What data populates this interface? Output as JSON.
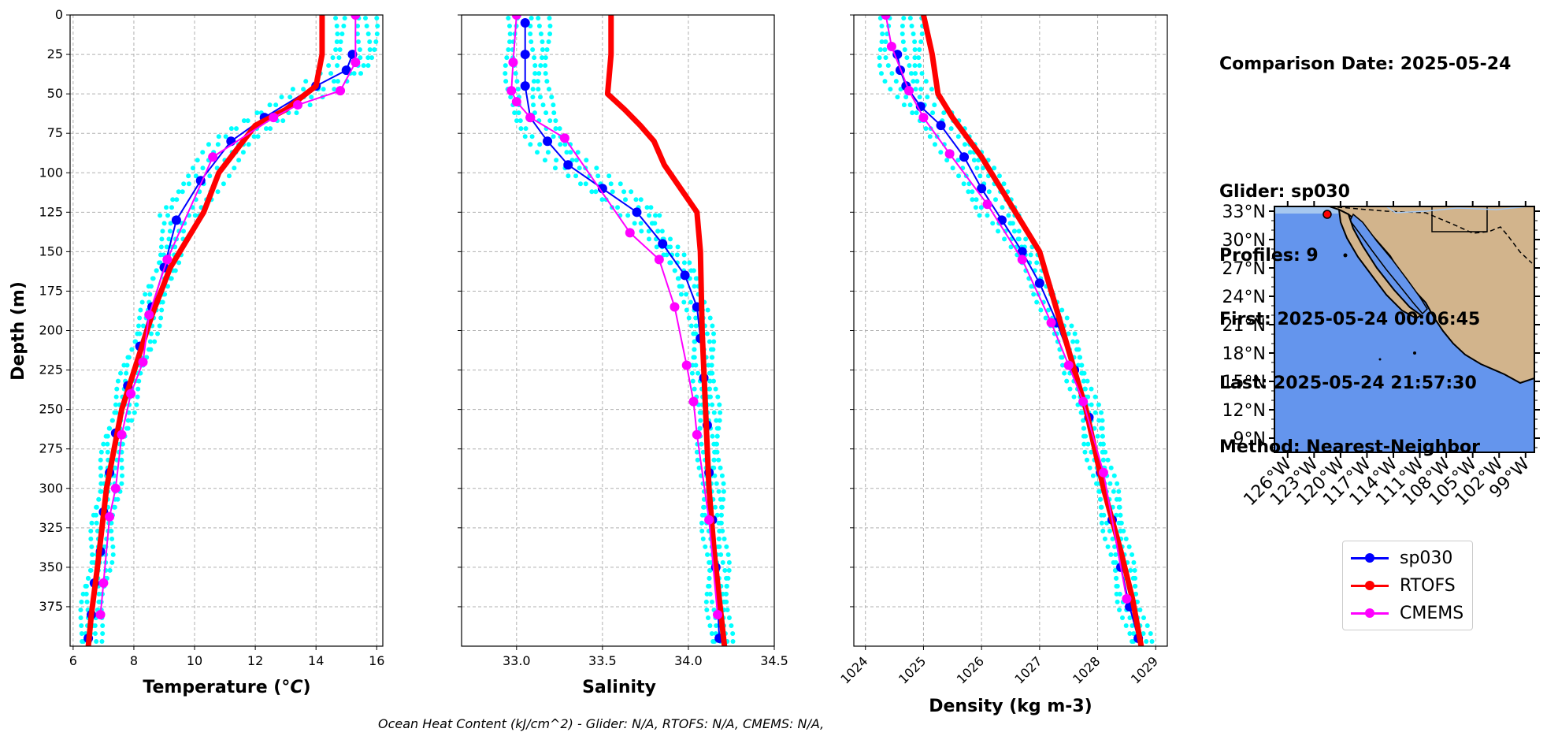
{
  "info": {
    "lines": [
      "Comparison Date: 2025-05-24",
      "",
      "Glider: sp030",
      "Profiles: 9",
      "First: 2025-05-24 00:06:45",
      "Last: 2025-05-24 21:57:30",
      "Method: Nearest-Neighbor"
    ]
  },
  "footer": "Ocean Heat Content (kJ/cm^2) - Glider: N/A,  RTOFS: N/A,  CMEMS: N/A,",
  "legend": [
    {
      "name": "sp030",
      "color": "#0000ff"
    },
    {
      "name": "RTOFS",
      "color": "#ff0000"
    },
    {
      "name": "CMEMS",
      "color": "#ff00ff"
    }
  ],
  "colors": {
    "glider_profiles": "#00ffff",
    "grid": "#b0b0b0",
    "ocean": "#6495ed",
    "land": "#d2b48c",
    "rivers": "#a6c8f0",
    "marker": "#ff0000"
  },
  "chart_data": [
    {
      "type": "line",
      "xlabel": "Temperature (°C)",
      "ylabel": "Depth (m)",
      "xlim": [
        5.9,
        16.2
      ],
      "ylim": [
        400,
        0
      ],
      "xticks": [
        "6",
        "8",
        "10",
        "12",
        "14",
        "16"
      ],
      "yticks": [
        "0",
        "25",
        "50",
        "75",
        "100",
        "125",
        "150",
        "175",
        "200",
        "225",
        "250",
        "275",
        "300",
        "325",
        "350",
        "375"
      ],
      "grid": true,
      "series": [
        {
          "name": "sp030",
          "x": [
            15.2,
            15.0,
            14.0,
            12.3,
            11.2,
            10.2,
            9.4,
            9.0,
            8.6,
            8.2,
            7.8,
            7.4,
            7.2,
            7.0,
            6.9,
            6.7,
            6.6,
            6.5
          ],
          "y": [
            25,
            35,
            45,
            65,
            80,
            105,
            130,
            160,
            185,
            210,
            235,
            265,
            290,
            315,
            340,
            360,
            380,
            395
          ]
        },
        {
          "name": "RTOFS",
          "x": [
            14.2,
            14.2,
            14.0,
            13.0,
            12.0,
            10.8,
            10.3,
            9.2,
            8.6,
            7.6,
            7.1,
            6.8,
            6.6,
            6.5
          ],
          "y": [
            0,
            25,
            45,
            60,
            70,
            100,
            125,
            160,
            190,
            250,
            300,
            350,
            380,
            400
          ]
        },
        {
          "name": "CMEMS",
          "x": [
            15.3,
            15.3,
            14.8,
            13.4,
            12.6,
            10.6,
            9.1,
            8.5,
            8.3,
            7.9,
            7.6,
            7.4,
            7.2,
            7.0,
            6.9
          ],
          "y": [
            0,
            30,
            48,
            57,
            65,
            90,
            155,
            190,
            220,
            240,
            266,
            300,
            318,
            360,
            380
          ]
        }
      ]
    },
    {
      "type": "line",
      "xlabel": "Salinity",
      "ylabel": "",
      "xlim": [
        32.68,
        34.5
      ],
      "ylim": [
        400,
        0
      ],
      "xticks": [
        "33.0",
        "33.5",
        "34.0",
        "34.5"
      ],
      "grid": true,
      "series": [
        {
          "name": "sp030",
          "x": [
            33.05,
            33.05,
            33.05,
            33.08,
            33.18,
            33.3,
            33.5,
            33.7,
            33.85,
            33.98,
            34.05,
            34.07,
            34.09,
            34.11,
            34.12,
            34.14,
            34.16,
            34.18
          ],
          "y": [
            5,
            25,
            45,
            65,
            80,
            95,
            110,
            125,
            145,
            165,
            185,
            205,
            230,
            260,
            290,
            320,
            350,
            395
          ]
        },
        {
          "name": "RTOFS",
          "x": [
            33.55,
            33.55,
            33.53,
            33.63,
            33.72,
            33.8,
            33.86,
            34.05,
            34.07,
            34.08,
            34.1,
            34.12,
            34.15,
            34.18,
            34.21
          ],
          "y": [
            0,
            25,
            50,
            60,
            70,
            80,
            95,
            125,
            150,
            200,
            250,
            300,
            340,
            370,
            400
          ]
        },
        {
          "name": "CMEMS",
          "x": [
            33.0,
            32.98,
            32.97,
            33.0,
            33.08,
            33.28,
            33.66,
            33.83,
            33.92,
            33.99,
            34.03,
            34.05,
            34.12,
            34.17
          ],
          "y": [
            0,
            30,
            48,
            55,
            65,
            78,
            138,
            155,
            185,
            222,
            245,
            266,
            320,
            380
          ]
        }
      ]
    },
    {
      "type": "line",
      "xlabel": "Density (kg m-3)",
      "ylabel": "",
      "xlim": [
        1023.8,
        1029.2
      ],
      "ylim": [
        400,
        0
      ],
      "xticks": [
        "1024",
        "1025",
        "1026",
        "1027",
        "1028",
        "1029"
      ],
      "grid": true,
      "series": [
        {
          "name": "sp030",
          "x": [
            1024.55,
            1024.6,
            1024.7,
            1024.95,
            1025.3,
            1025.7,
            1026.0,
            1026.35,
            1026.7,
            1027.0,
            1027.3,
            1027.6,
            1027.85,
            1028.05,
            1028.25,
            1028.4,
            1028.55,
            1028.7
          ],
          "y": [
            25,
            35,
            45,
            58,
            70,
            90,
            110,
            130,
            150,
            170,
            195,
            225,
            255,
            290,
            320,
            350,
            375,
            395
          ]
        },
        {
          "name": "RTOFS",
          "x": [
            1025.0,
            1025.15,
            1025.25,
            1025.5,
            1026.0,
            1026.5,
            1027.0,
            1027.4,
            1027.8,
            1028.1,
            1028.4,
            1028.6,
            1028.75
          ],
          "y": [
            0,
            25,
            50,
            65,
            90,
            120,
            150,
            200,
            250,
            300,
            340,
            370,
            400
          ]
        },
        {
          "name": "CMEMS",
          "x": [
            1024.35,
            1024.45,
            1024.75,
            1025.0,
            1025.45,
            1026.1,
            1026.7,
            1027.2,
            1027.5,
            1027.75,
            1028.1,
            1028.5
          ],
          "y": [
            0,
            20,
            48,
            65,
            88,
            120,
            155,
            195,
            222,
            245,
            290,
            370
          ]
        }
      ]
    }
  ],
  "map": {
    "lat_labels": [
      "33°N",
      "30°N",
      "27°N",
      "24°N",
      "21°N",
      "18°N",
      "15°N",
      "12°N",
      "9°N"
    ],
    "lon_labels": [
      "126°W",
      "123°W",
      "120°W",
      "117°W",
      "114°W",
      "111°W",
      "108°W",
      "105°W",
      "102°W",
      "99°W"
    ],
    "lat_range": [
      7.5,
      33.5
    ],
    "lon_range": [
      -127.5,
      -98.0
    ],
    "glider_position": {
      "lat": 33.0,
      "lon": -121.5
    }
  }
}
